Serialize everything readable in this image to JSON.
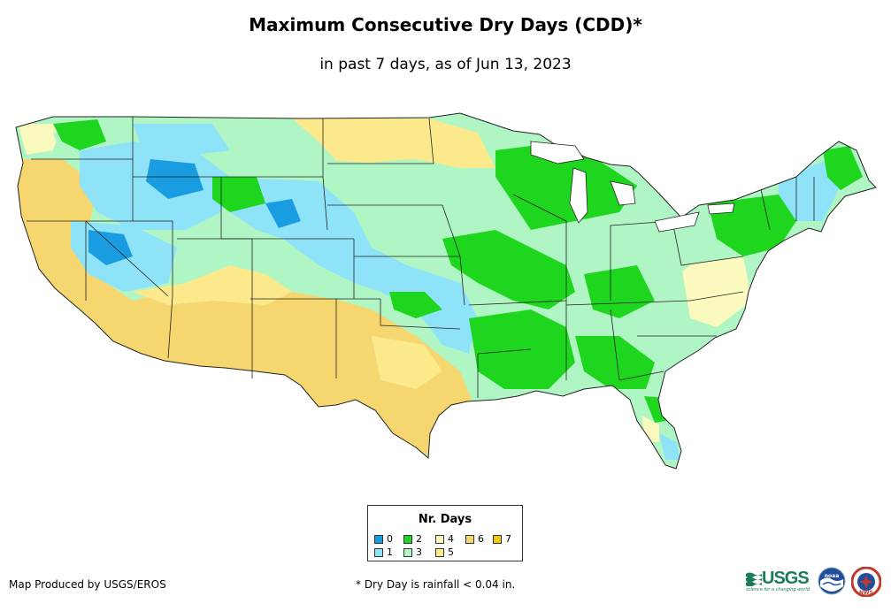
{
  "header": {
    "title": "Maximum Consecutive Dry Days (CDD)*",
    "subtitle": "in past 7 days, as of Jun 13, 2023"
  },
  "legend": {
    "title": "Nr. Days",
    "items": [
      {
        "label": "0",
        "color": "#1a9ce0"
      },
      {
        "label": "1",
        "color": "#8ee3f8"
      },
      {
        "label": "2",
        "color": "#1ed61e"
      },
      {
        "label": "3",
        "color": "#b0f5c4"
      },
      {
        "label": "4",
        "color": "#fafabe"
      },
      {
        "label": "5",
        "color": "#fbe98c"
      },
      {
        "label": "6",
        "color": "#f6d66e"
      },
      {
        "label": "7",
        "color": "#f5c31a"
      }
    ]
  },
  "footer": {
    "credit": "Map Produced by USGS/EROS",
    "footnote": "* Dry Day is rainfall < 0.04 in."
  },
  "logos": {
    "usgs_word": "USGS",
    "usgs_tagline": "science for a changing world",
    "noaa": "noaa",
    "nws": "NWS"
  }
}
